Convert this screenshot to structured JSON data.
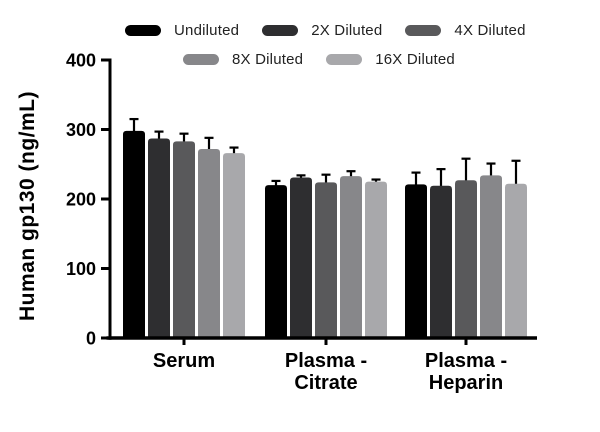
{
  "figure": {
    "background": "#ffffff",
    "axis_color": "#000000"
  },
  "chart_data": {
    "type": "bar",
    "title": "",
    "xlabel": "",
    "ylabel": "Human gp130 (ng/mL)",
    "ylim": [
      0,
      400
    ],
    "yticks": [
      0,
      100,
      200,
      300,
      400
    ],
    "grid": false,
    "legend_position": "top",
    "error_bars": "positive SD, black caps",
    "error_bar_color": "#000000",
    "categories": [
      "Serum",
      "Plasma - Citrate",
      "Plasma - Heparin"
    ],
    "category_label_lines": [
      [
        "Serum"
      ],
      [
        "Plasma -",
        "Citrate"
      ],
      [
        "Plasma -",
        "Heparin"
      ]
    ],
    "series": [
      {
        "name": "Undiluted",
        "color": "#000000",
        "values": [
          298,
          220,
          221
        ],
        "errors": [
          17,
          6,
          17
        ]
      },
      {
        "name": "2X Diluted",
        "color": "#2e2e30",
        "values": [
          287,
          231,
          219
        ],
        "errors": [
          10,
          3,
          24
        ]
      },
      {
        "name": "4X Diluted",
        "color": "#59595b",
        "values": [
          283,
          224,
          227
        ],
        "errors": [
          11,
          11,
          31
        ]
      },
      {
        "name": "8X Diluted",
        "color": "#87878a",
        "values": [
          272,
          233,
          234
        ],
        "errors": [
          16,
          7,
          17
        ]
      },
      {
        "name": "16X Diluted",
        "color": "#a8a8ab",
        "values": [
          266,
          225,
          222
        ],
        "errors": [
          8,
          3,
          33
        ]
      }
    ]
  }
}
